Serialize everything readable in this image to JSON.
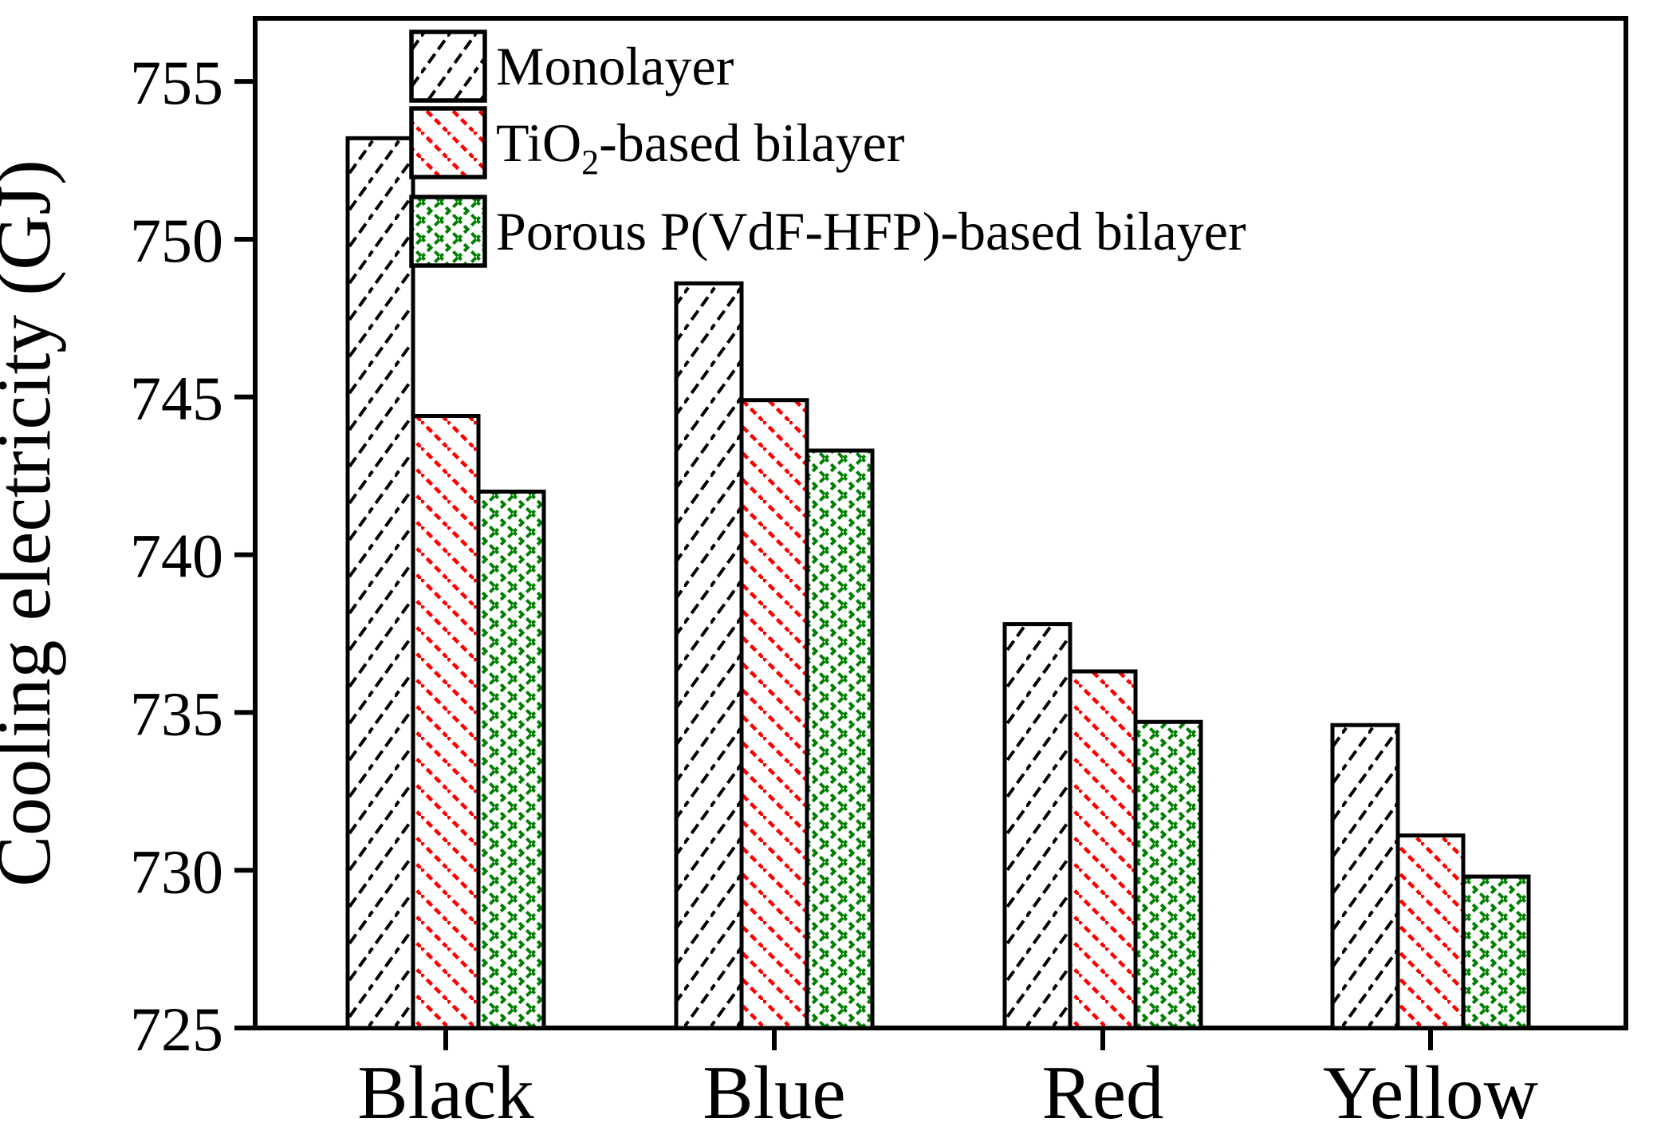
{
  "chart_data": {
    "type": "bar",
    "title": "",
    "xlabel": "",
    "ylabel": "Cooling electricity (GJ)",
    "categories": [
      "Black",
      "Blue",
      "Red",
      "Yellow"
    ],
    "series": [
      {
        "key": "monolayer",
        "name": "Monolayer",
        "color": "#000000",
        "hatch": "forward-diagonal",
        "values": [
          753.2,
          748.6,
          737.8,
          734.6
        ]
      },
      {
        "key": "tio2",
        "name": "TiO2-based bilayer",
        "name_parts": {
          "pre": "TiO",
          "sub": "2",
          "post": "-based bilayer"
        },
        "color": "#ff0000",
        "hatch": "back-diagonal",
        "values": [
          744.4,
          744.9,
          736.3,
          731.1
        ]
      },
      {
        "key": "porous",
        "name": "Porous P(VdF-HFP)-based bilayer",
        "color": "#008000",
        "hatch": "cross-diagonal",
        "values": [
          742.0,
          743.3,
          734.7,
          729.8
        ]
      }
    ],
    "ylim": [
      725,
      757
    ],
    "yticks": [
      725,
      730,
      735,
      740,
      745,
      750,
      755
    ],
    "grid": false,
    "legend_position": "top-left-inside",
    "bar_fill": "#ffffff",
    "frame_color": "#000000",
    "text_color": "#000000"
  }
}
